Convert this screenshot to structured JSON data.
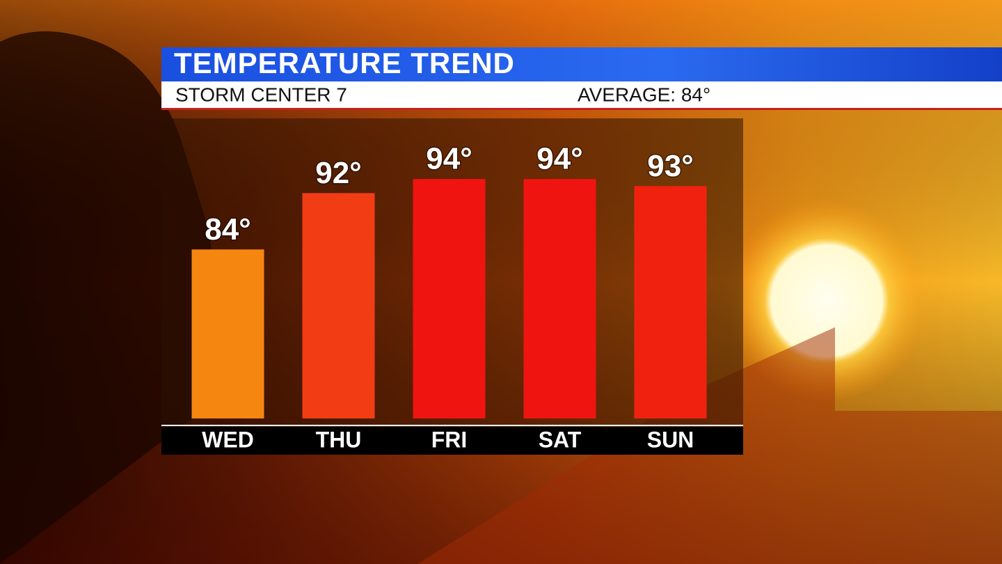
{
  "chart_data": {
    "type": "bar",
    "title": "TEMPERATURE TREND",
    "subtitle": "STORM CENTER 7",
    "annotation": "AVERAGE: 84°",
    "categories": [
      "WED",
      "THU",
      "FRI",
      "SAT",
      "SUN"
    ],
    "values": [
      84,
      92,
      94,
      94,
      93
    ],
    "value_labels": [
      "84°",
      "92°",
      "94°",
      "94°",
      "93°"
    ],
    "colors": [
      "#f5860f",
      "#f23d14",
      "#f01410",
      "#f01410",
      "#f0220f"
    ],
    "ylim": [
      60,
      95
    ]
  }
}
